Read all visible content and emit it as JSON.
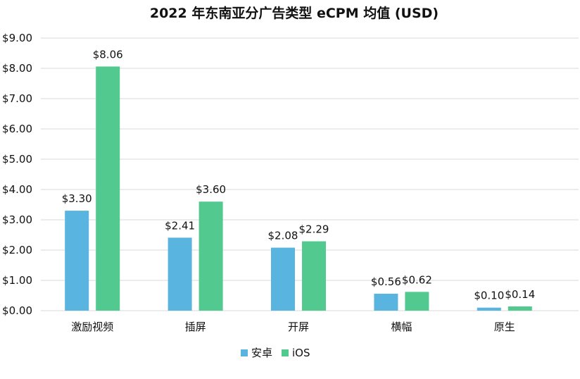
{
  "chart_data": {
    "type": "bar",
    "title": "2022 年东南亚分广告类型 eCPM 均值 (USD)",
    "categories": [
      "激励视频",
      "插屏",
      "开屏",
      "横幅",
      "原生"
    ],
    "series": [
      {
        "name": "安卓",
        "color": "#5ab4e0",
        "values": [
          3.3,
          2.41,
          2.08,
          0.56,
          0.1
        ]
      },
      {
        "name": "iOS",
        "color": "#52c98f",
        "values": [
          8.06,
          3.6,
          2.29,
          0.62,
          0.14
        ]
      }
    ],
    "value_labels": [
      [
        "$3.30",
        "$2.41",
        "$2.08",
        "$0.56",
        "$0.10"
      ],
      [
        "$8.06",
        "$3.60",
        "$2.29",
        "$0.62",
        "$0.14"
      ]
    ],
    "ylim": [
      0,
      9
    ],
    "y_ticks": [
      0,
      1,
      2,
      3,
      4,
      5,
      6,
      7,
      8,
      9
    ],
    "y_tick_labels": [
      "$0.00",
      "$1.00",
      "$2.00",
      "$3.00",
      "$4.00",
      "$5.00",
      "$6.00",
      "$7.00",
      "$8.00",
      "$9.00"
    ],
    "grid": true,
    "legend": "bottom"
  }
}
